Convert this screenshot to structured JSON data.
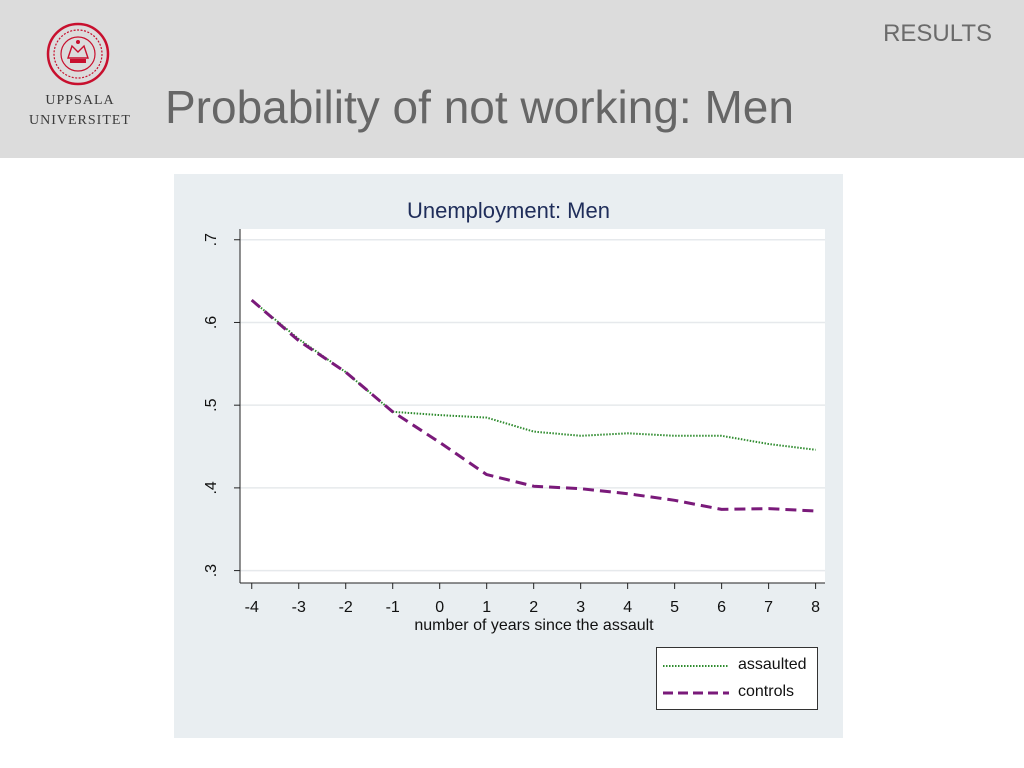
{
  "header": {
    "section_label": "RESULTS",
    "title": "Probability of not working: Men",
    "logo": {
      "line1": "UPPSALA",
      "line2": "UNIVERSITET",
      "accent_color": "#c8102e"
    }
  },
  "chart_data": {
    "type": "line",
    "title": "Unemployment: Men",
    "xlabel": "number of years since the assault",
    "ylabel": "",
    "x": [
      -4,
      -3,
      -2,
      -1,
      0,
      1,
      2,
      3,
      4,
      5,
      6,
      7,
      8
    ],
    "xticks": [
      "-4",
      "-3",
      "-2",
      "-1",
      "0",
      "1",
      "2",
      "3",
      "4",
      "5",
      "6",
      "7",
      "8"
    ],
    "yticks": [
      {
        "value": 0.3,
        "label": ".3"
      },
      {
        "value": 0.4,
        "label": ".4"
      },
      {
        "value": 0.5,
        "label": ".5"
      },
      {
        "value": 0.6,
        "label": ".6"
      },
      {
        "value": 0.7,
        "label": ".7"
      }
    ],
    "xlim": [
      -4.25,
      8.2
    ],
    "ylim": [
      0.285,
      0.713
    ],
    "grid": true,
    "legend_position": "bottom-right",
    "series": [
      {
        "name": "assaulted",
        "color": "#2e8b2e",
        "style": "dotted",
        "values": [
          0.627,
          0.58,
          0.54,
          0.492,
          0.488,
          0.485,
          0.468,
          0.463,
          0.466,
          0.463,
          0.463,
          0.453,
          0.446
        ]
      },
      {
        "name": "controls",
        "color": "#7a1a7a",
        "style": "dashed",
        "values": [
          0.627,
          0.578,
          0.54,
          0.492,
          0.455,
          0.416,
          0.402,
          0.399,
          0.393,
          0.385,
          0.374,
          0.375,
          0.372
        ]
      }
    ]
  }
}
